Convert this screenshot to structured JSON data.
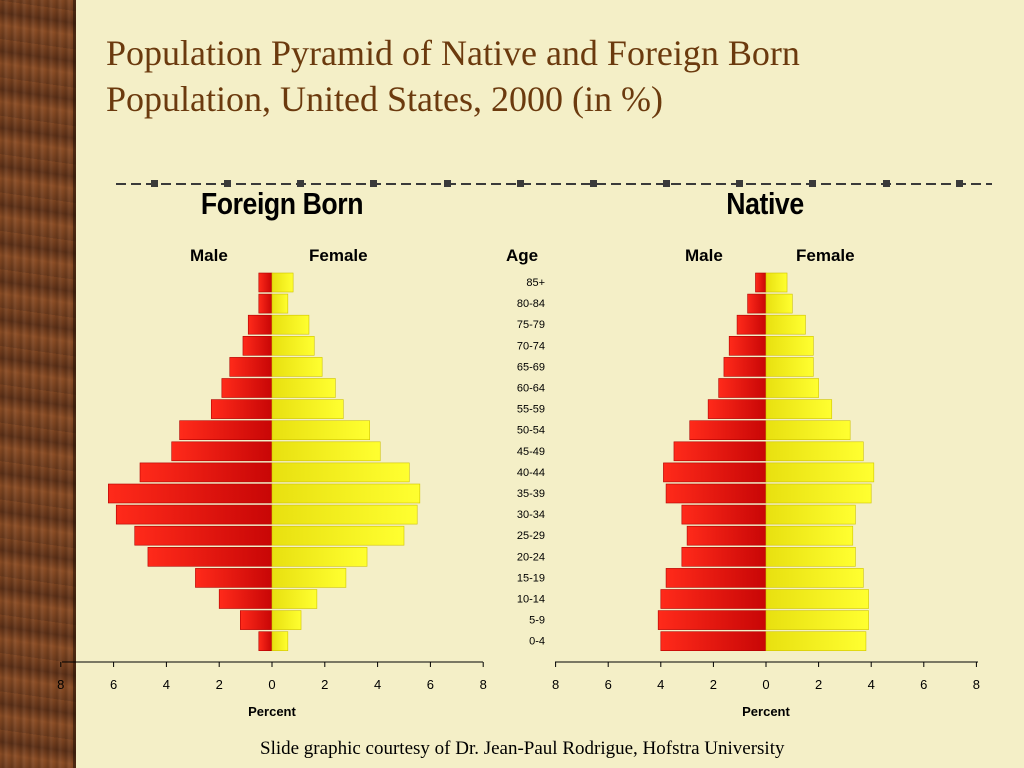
{
  "slide": {
    "title_line1": "Population Pyramid of Native and Foreign Born",
    "title_line2": "Population, United States, 2000 (in %)",
    "credit": "Slide graphic courtesy of Dr. Jean-Paul Rodrigue, Hofstra University"
  },
  "colors": {
    "male": "#e60e0e",
    "female": "#f2ee0c",
    "title": "#6b3a0e",
    "background": "#f4efc7"
  },
  "age_label": "Age",
  "chart_data": [
    {
      "type": "bar",
      "orientation": "horizontal-pyramid",
      "title": "Foreign Born",
      "xlabel": "Percent",
      "ylabel": "Age",
      "xlim": [
        -8,
        8
      ],
      "x_tick_labels": [
        "8",
        "6",
        "4",
        "2",
        "0",
        "2",
        "4",
        "6",
        "8"
      ],
      "categories": [
        "85+",
        "80-84",
        "75-79",
        "70-74",
        "65-69",
        "60-64",
        "55-59",
        "50-54",
        "45-49",
        "40-44",
        "35-39",
        "30-34",
        "25-29",
        "20-24",
        "15-19",
        "10-14",
        "5-9",
        "0-4"
      ],
      "series": [
        {
          "name": "Male",
          "values": [
            0.5,
            0.5,
            0.9,
            1.1,
            1.6,
            1.9,
            2.3,
            3.5,
            3.8,
            5.0,
            6.2,
            5.9,
            5.2,
            4.7,
            2.9,
            2.0,
            1.2,
            0.5
          ]
        },
        {
          "name": "Female",
          "values": [
            0.8,
            0.6,
            1.4,
            1.6,
            1.9,
            2.4,
            2.7,
            3.7,
            4.1,
            5.2,
            5.6,
            5.5,
            5.0,
            3.6,
            2.8,
            1.7,
            1.1,
            0.6
          ]
        }
      ]
    },
    {
      "type": "bar",
      "orientation": "horizontal-pyramid",
      "title": "Native",
      "xlabel": "Percent",
      "ylabel": "Age",
      "xlim": [
        -8,
        8
      ],
      "x_tick_labels": [
        "8",
        "6",
        "4",
        "2",
        "0",
        "2",
        "4",
        "6",
        "8"
      ],
      "categories": [
        "85+",
        "80-84",
        "75-79",
        "70-74",
        "65-69",
        "60-64",
        "55-59",
        "50-54",
        "45-49",
        "40-44",
        "35-39",
        "30-34",
        "25-29",
        "20-24",
        "15-19",
        "10-14",
        "5-9",
        "0-4"
      ],
      "series": [
        {
          "name": "Male",
          "values": [
            0.4,
            0.7,
            1.1,
            1.4,
            1.6,
            1.8,
            2.2,
            2.9,
            3.5,
            3.9,
            3.8,
            3.2,
            3.0,
            3.2,
            3.8,
            4.0,
            4.1,
            4.0
          ]
        },
        {
          "name": "Female",
          "values": [
            0.8,
            1.0,
            1.5,
            1.8,
            1.8,
            2.0,
            2.5,
            3.2,
            3.7,
            4.1,
            4.0,
            3.4,
            3.3,
            3.4,
            3.7,
            3.9,
            3.9,
            3.8
          ]
        }
      ]
    }
  ],
  "headers": {
    "male": "Male",
    "female": "Female"
  }
}
